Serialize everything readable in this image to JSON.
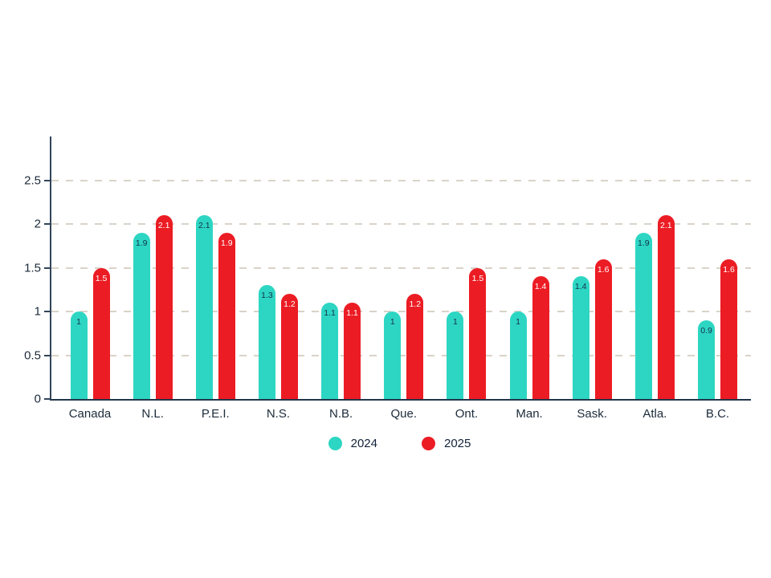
{
  "chart_data": {
    "type": "bar",
    "title": "",
    "xlabel": "",
    "ylabel": "",
    "categories": [
      "Canada",
      "N.L.",
      "P.E.I.",
      "N.S.",
      "N.B.",
      "Que.",
      "Ont.",
      "Man.",
      "Sask.",
      "Atla.",
      "B.C."
    ],
    "series": [
      {
        "name": "2024",
        "color": "#2DD6C3",
        "value_label_color": "#14324A",
        "values": [
          1,
          1.9,
          2.1,
          1.3,
          1.1,
          1,
          1,
          1,
          1.4,
          1.9,
          0.9
        ],
        "labels": [
          "1",
          "1.9",
          "2.1",
          "1.3",
          "1.1",
          "1",
          "1",
          "1",
          "1.4",
          "1.9",
          "0.9"
        ]
      },
      {
        "name": "2025",
        "color": "#EC1C24",
        "value_label_color": "#FFFFFF",
        "values": [
          1.5,
          2.1,
          1.9,
          1.2,
          1.1,
          1.2,
          1.5,
          1.4,
          1.6,
          2.1,
          1.6
        ],
        "labels": [
          "1.5",
          "2.1",
          "1.9",
          "1.2",
          "1.1",
          "1.2",
          "1.5",
          "1.4",
          "1.6",
          "2.1",
          "1.6"
        ]
      }
    ],
    "y_ticks": [
      "0",
      "0.5",
      "1",
      "1.5",
      "2",
      "2.5"
    ],
    "y_tick_values": [
      0,
      0.5,
      1,
      1.5,
      2,
      2.5
    ],
    "ylim": [
      0,
      3
    ],
    "grid": "dashed-horizontal",
    "grid_color": "#D9D3C9",
    "axis_color": "#31455A",
    "text_color": "#1C2B3A",
    "legend_position": "bottom-center",
    "legend_entries": [
      "2024",
      "2025"
    ]
  }
}
